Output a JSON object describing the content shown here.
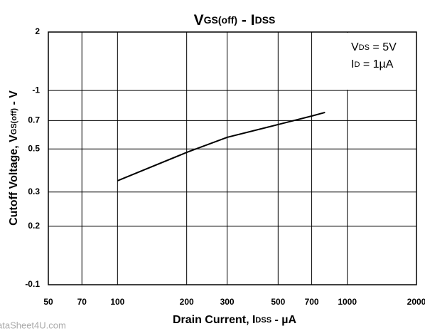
{
  "chart_data": {
    "type": "line",
    "title": [
      "V",
      "GS(off)",
      " - I",
      "DSS"
    ],
    "x_label": [
      "Drain Current, I",
      "DSS",
      " - µA"
    ],
    "y_label": [
      "Cutoff Voltage, V",
      "GS(off)",
      " - V"
    ],
    "annotations": [
      [
        "V",
        "DS",
        " = 5V"
      ],
      [
        "I",
        "D",
        " = 1µA"
      ]
    ],
    "watermark": "ataSheet4U.com",
    "x": [
      100,
      200,
      300,
      500,
      700,
      800
    ],
    "series": [
      {
        "color": "#000000",
        "values": [
          0.343,
          0.48,
          0.574,
          0.668,
          0.739,
          0.771
        ]
      }
    ],
    "xlog": true,
    "ylog": true,
    "grid": true,
    "xlim": [
      50,
      2000
    ],
    "xticks": [
      50,
      70,
      100,
      200,
      300,
      500,
      700,
      1000,
      2000
    ],
    "ylim": [
      0.1,
      2
    ],
    "yticks": [
      {
        "value": 0.1,
        "label": "-0.1"
      },
      0.2,
      0.3,
      0.5,
      0.7,
      {
        "value": 1,
        "label": "-1"
      },
      2
    ]
  }
}
